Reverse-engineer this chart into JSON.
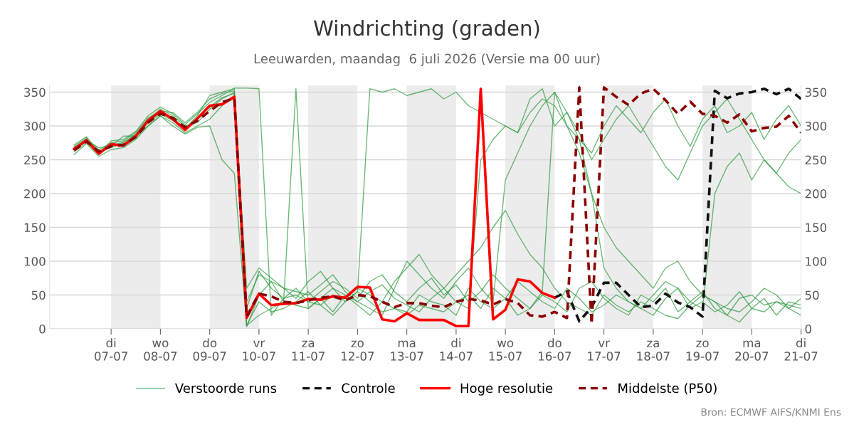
{
  "chart_data": {
    "type": "line",
    "title": "Windrichting (graden)",
    "subtitle": "Leeuwarden, maandag  6 juli 2026 (Versie ma 00 uur)",
    "annotations": [
      "Bron: ECMWF AIFS/KNMI Ens"
    ],
    "x": [
      "2026-07-06T06:00",
      "2026-07-06T12:00",
      "2026-07-06T18:00",
      "2026-07-07T00:00",
      "2026-07-07T06:00",
      "2026-07-07T12:00",
      "2026-07-07T18:00",
      "2026-07-08T00:00",
      "2026-07-08T06:00",
      "2026-07-08T12:00",
      "2026-07-08T18:00",
      "2026-07-09T00:00",
      "2026-07-09T06:00",
      "2026-07-09T12:00",
      "2026-07-09T18:00",
      "2026-07-10T00:00",
      "2026-07-10T06:00",
      "2026-07-10T12:00",
      "2026-07-10T18:00",
      "2026-07-11T00:00",
      "2026-07-11T06:00",
      "2026-07-11T12:00",
      "2026-07-11T18:00",
      "2026-07-12T00:00",
      "2026-07-12T06:00",
      "2026-07-12T12:00",
      "2026-07-12T18:00",
      "2026-07-13T00:00",
      "2026-07-13T06:00",
      "2026-07-13T12:00",
      "2026-07-13T18:00",
      "2026-07-14T00:00",
      "2026-07-14T06:00",
      "2026-07-14T12:00",
      "2026-07-14T18:00",
      "2026-07-15T00:00",
      "2026-07-15T06:00",
      "2026-07-15T12:00",
      "2026-07-15T18:00",
      "2026-07-16T00:00",
      "2026-07-16T06:00",
      "2026-07-16T12:00",
      "2026-07-16T18:00",
      "2026-07-17T00:00",
      "2026-07-17T06:00",
      "2026-07-17T12:00",
      "2026-07-17T18:00",
      "2026-07-18T00:00",
      "2026-07-18T06:00",
      "2026-07-18T12:00",
      "2026-07-18T18:00",
      "2026-07-19T00:00",
      "2026-07-19T06:00",
      "2026-07-19T12:00",
      "2026-07-19T18:00",
      "2026-07-20T00:00",
      "2026-07-20T06:00",
      "2026-07-20T12:00",
      "2026-07-20T18:00",
      "2026-07-21T00:00"
    ],
    "series": [
      {
        "name": "Verstoorde runs",
        "color": "#2e9b3e",
        "line_style": "solid",
        "values": [
          268,
          280,
          262,
          268,
          275,
          288,
          310,
          325,
          315,
          300,
          305,
          325,
          340,
          350,
          30,
          85,
          60,
          45,
          50,
          40,
          55,
          70,
          60,
          45,
          70,
          80,
          55,
          40,
          60,
          75,
          50,
          65,
          40,
          55,
          80,
          60,
          45,
          30,
          50,
          40,
          25,
          60,
          70,
          45,
          30,
          20,
          50,
          40,
          60,
          25,
          40,
          55,
          30,
          20,
          45,
          50,
          35,
          40,
          30,
          45
        ]
      },
      {
        "color": "#2e9b3e",
        "line_style": "solid",
        "values": [
          262,
          276,
          258,
          272,
          270,
          282,
          305,
          318,
          308,
          296,
          315,
          345,
          350,
          355,
          5,
          20,
          30,
          40,
          35,
          30,
          45,
          25,
          50,
          35,
          20,
          40,
          30,
          25,
          50,
          40,
          35,
          20,
          60,
          40,
          30,
          45,
          70,
          55,
          40,
          30,
          60,
          45,
          25,
          35,
          50,
          40,
          30,
          20,
          45,
          60,
          30,
          40,
          25,
          35,
          55,
          30,
          45,
          20,
          40,
          35
        ]
      },
      {
        "color": "#2e9b3e",
        "line_style": "solid",
        "values": [
          270,
          282,
          265,
          275,
          278,
          290,
          312,
          322,
          320,
          305,
          320,
          340,
          348,
          352,
          3,
          50,
          70,
          40,
          355,
          30,
          45,
          60,
          40,
          55,
          355,
          350,
          355,
          345,
          350,
          355,
          340,
          350,
          330,
          320,
          310,
          300,
          290,
          340,
          355,
          300,
          320,
          280,
          260,
          300,
          330,
          310,
          290,
          320,
          340,
          300,
          270,
          310,
          330,
          290,
          300,
          320,
          280,
          310,
          330,
          300
        ]
      },
      {
        "color": "#2e9b3e",
        "line_style": "solid",
        "values": [
          265,
          278,
          268,
          270,
          285,
          285,
          300,
          315,
          305,
          290,
          300,
          310,
          330,
          345,
          60,
          90,
          75,
          60,
          55,
          50,
          65,
          80,
          55,
          40,
          30,
          20,
          60,
          100,
          80,
          60,
          45,
          70,
          90,
          60,
          40,
          220,
          260,
          300,
          330,
          350,
          320,
          290,
          250,
          280,
          310,
          330,
          300,
          270,
          240,
          220,
          260,
          300,
          320,
          340,
          310,
          280,
          250,
          230,
          260,
          280
        ]
      },
      {
        "color": "#2e9b3e",
        "line_style": "solid",
        "values": [
          258,
          274,
          255,
          265,
          268,
          280,
          300,
          315,
          300,
          288,
          298,
          300,
          250,
          230,
          5,
          40,
          25,
          30,
          40,
          55,
          35,
          20,
          40,
          55,
          40,
          25,
          30,
          20,
          35,
          30,
          25,
          40,
          50,
          30,
          60,
          45,
          20,
          30,
          55,
          350,
          300,
          260,
          200,
          150,
          120,
          100,
          80,
          60,
          90,
          100,
          70,
          50,
          40,
          30,
          25,
          40,
          60,
          50,
          30,
          20
        ]
      },
      {
        "color": "#2e9b3e",
        "line_style": "solid",
        "values": [
          272,
          284,
          260,
          278,
          280,
          292,
          315,
          328,
          318,
          302,
          318,
          335,
          345,
          356,
          356,
          355,
          20,
          45,
          60,
          40,
          35,
          50,
          45,
          60,
          50,
          40,
          70,
          90,
          110,
          80,
          60,
          40,
          30,
          250,
          280,
          300,
          290,
          320,
          340,
          330,
          300,
          280,
          200,
          90,
          60,
          40,
          30,
          50,
          70,
          60,
          40,
          30,
          200,
          240,
          260,
          220,
          250,
          230,
          210,
          200
        ]
      },
      {
        "color": "#2e9b3e",
        "line_style": "solid",
        "values": [
          266,
          279,
          263,
          271,
          276,
          286,
          307,
          320,
          312,
          297,
          310,
          328,
          342,
          348,
          40,
          80,
          70,
          60,
          45,
          70,
          85,
          60,
          50,
          40,
          55,
          65,
          45,
          35,
          25,
          45,
          60,
          80,
          100,
          120,
          150,
          175,
          140,
          110,
          90,
          60,
          40,
          30,
          20,
          50,
          35,
          25,
          40,
          30,
          20,
          15,
          35,
          50,
          40,
          20,
          10,
          30,
          25,
          40,
          35,
          30
        ]
      },
      {
        "name": "Controle",
        "color": "#111111",
        "line_style": "dashed",
        "values": [
          null,
          null,
          null,
          null,
          null,
          null,
          null,
          null,
          null,
          null,
          null,
          null,
          null,
          null,
          null,
          null,
          null,
          null,
          null,
          null,
          null,
          null,
          null,
          null,
          null,
          null,
          null,
          null,
          null,
          null,
          null,
          null,
          null,
          null,
          null,
          null,
          null,
          null,
          null,
          46,
          55,
          11,
          32,
          68,
          68,
          50,
          32,
          34,
          52,
          39,
          32,
          18,
          352,
          341,
          348,
          350,
          355,
          347,
          355,
          340
        ]
      },
      {
        "name": "Hoge resolutie",
        "color": "#ff0000",
        "line_style": "solid",
        "values": [
          266,
          279,
          259,
          273,
          271,
          285,
          308,
          322,
          310,
          294,
          311,
          330,
          332,
          343,
          16,
          52,
          35,
          37,
          38,
          44,
          43,
          48,
          46,
          62,
          61,
          14,
          11,
          23,
          13,
          13,
          13,
          4,
          4,
          355,
          14,
          28,
          73,
          70,
          53,
          46,
          null,
          null,
          null,
          null,
          null,
          null,
          null,
          null,
          null,
          null,
          null,
          null,
          null,
          null,
          null,
          null,
          null,
          null,
          null,
          null
        ]
      },
      {
        "name": "Middelste (P50)",
        "color": "#8b0000",
        "line_style": "dashed",
        "values": [
          264,
          277,
          262,
          270,
          272,
          284,
          305,
          318,
          312,
          298,
          308,
          322,
          335,
          341,
          18,
          52,
          48,
          40,
          38,
          42,
          46,
          48,
          42,
          50,
          48,
          40,
          32,
          38,
          38,
          34,
          32,
          40,
          44,
          42,
          36,
          44,
          38,
          20,
          18,
          25,
          16,
          357,
          7,
          357,
          343,
          331,
          348,
          355,
          338,
          318,
          336,
          318,
          315,
          305,
          317,
          292,
          297,
          299,
          315,
          290
        ]
      }
    ],
    "xlim": [
      "2026-07-05T18:00",
      "2026-07-21T00:00"
    ],
    "xticks": [
      {
        "value": "2026-07-07",
        "label": "di\n07-07"
      },
      {
        "value": "2026-07-08",
        "label": "wo\n08-07"
      },
      {
        "value": "2026-07-09",
        "label": "do\n09-07"
      },
      {
        "value": "2026-07-10",
        "label": "vr\n10-07"
      },
      {
        "value": "2026-07-11",
        "label": "za\n11-07"
      },
      {
        "value": "2026-07-12",
        "label": "zo\n12-07"
      },
      {
        "value": "2026-07-13",
        "label": "ma\n13-07"
      },
      {
        "value": "2026-07-14",
        "label": "di\n14-07"
      },
      {
        "value": "2026-07-15",
        "label": "wo\n15-07"
      },
      {
        "value": "2026-07-16",
        "label": "do\n16-07"
      },
      {
        "value": "2026-07-17",
        "label": "vr\n17-07"
      },
      {
        "value": "2026-07-18",
        "label": "za\n18-07"
      },
      {
        "value": "2026-07-19",
        "label": "zo\n19-07"
      },
      {
        "value": "2026-07-20",
        "label": "ma\n20-07"
      },
      {
        "value": "2026-07-21",
        "label": "di\n21-07"
      }
    ],
    "ylim": [
      0,
      360
    ],
    "yticks": [
      0,
      50,
      100,
      150,
      200,
      250,
      300,
      350
    ],
    "y2lim": [
      0,
      360
    ],
    "y2ticks": [
      0,
      50,
      100,
      150,
      200,
      250,
      300,
      350
    ],
    "bands": [
      {
        "axis": "x",
        "from": "2026-07-07",
        "to": "2026-07-08",
        "color": "#ececec"
      },
      {
        "axis": "x",
        "from": "2026-07-09",
        "to": "2026-07-10",
        "color": "#ececec"
      },
      {
        "axis": "x",
        "from": "2026-07-11",
        "to": "2026-07-12",
        "color": "#ececec"
      },
      {
        "axis": "x",
        "from": "2026-07-13",
        "to": "2026-07-14",
        "color": "#ececec"
      },
      {
        "axis": "x",
        "from": "2026-07-15",
        "to": "2026-07-16",
        "color": "#ececec"
      },
      {
        "axis": "x",
        "from": "2026-07-17",
        "to": "2026-07-18",
        "color": "#ececec"
      },
      {
        "axis": "x",
        "from": "2026-07-19",
        "to": "2026-07-20",
        "color": "#ececec"
      }
    ],
    "grid": "y",
    "legend": "bottom",
    "marker": "none"
  }
}
